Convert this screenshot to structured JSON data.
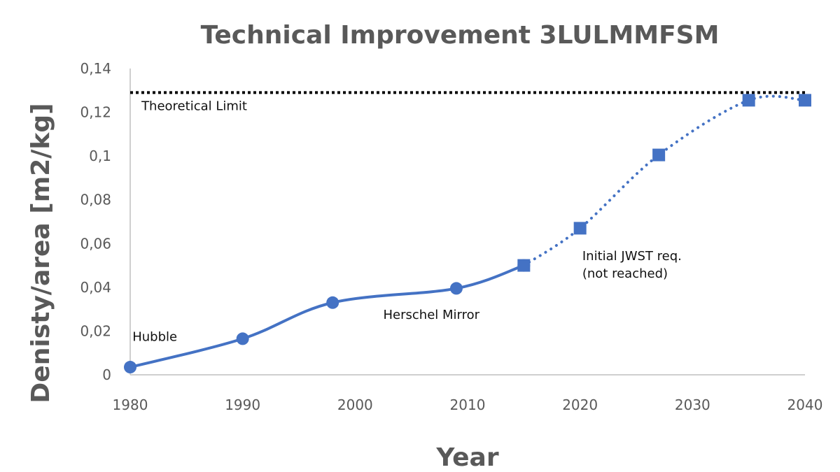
{
  "chart_data": {
    "type": "line",
    "title": "Technical Improvement 3LULMMFSM",
    "xlabel": "Year",
    "ylabel": "Denisty/area [m2/kg]",
    "xlim": [
      1980,
      2040
    ],
    "ylim": [
      0,
      0.14
    ],
    "x_ticks": [
      1980,
      1990,
      2000,
      2010,
      2020,
      2030,
      2040
    ],
    "x_tick_labels": [
      "1980",
      "1990",
      "2000",
      "2010",
      "2020",
      "2030",
      "2040"
    ],
    "y_ticks": [
      0,
      0.02,
      0.04,
      0.06,
      0.08,
      0.1,
      0.12,
      0.14
    ],
    "y_tick_labels": [
      "0",
      "0,02",
      "0,04",
      "0,06",
      "0,08",
      "0,1",
      "0,12",
      "0,14"
    ],
    "grid": false,
    "series": [
      {
        "marker": "circle",
        "line_style": "solid",
        "color": "#4472C4",
        "x": [
          1980,
          1990,
          1998,
          2009,
          2015
        ],
        "y": [
          0.0035,
          0.0165,
          0.033,
          0.0395,
          0.05
        ]
      },
      {
        "marker": "square",
        "line_style": "dotted",
        "color": "#4472C4",
        "x": [
          2015,
          2020,
          2027,
          2035,
          2040
        ],
        "y": [
          0.05,
          0.067,
          0.1005,
          0.1255,
          0.1255
        ]
      },
      {
        "line_style": "dotted",
        "color": "#000000",
        "x": [
          1980,
          2040
        ],
        "y": [
          0.129,
          0.129
        ]
      }
    ],
    "annotations": [
      {
        "text": "Theoretical Limit",
        "x": 1981,
        "y": 0.121
      },
      {
        "text": "Hubble",
        "x": 1980.2,
        "y": 0.0155
      },
      {
        "text": "Herschel Mirror",
        "x": 2002.5,
        "y": 0.0255
      },
      {
        "text": "Initial JWST req.",
        "x": 2020.2,
        "y": 0.0525
      },
      {
        "text": "(not reached)",
        "x": 2020.2,
        "y": 0.0445
      }
    ]
  }
}
